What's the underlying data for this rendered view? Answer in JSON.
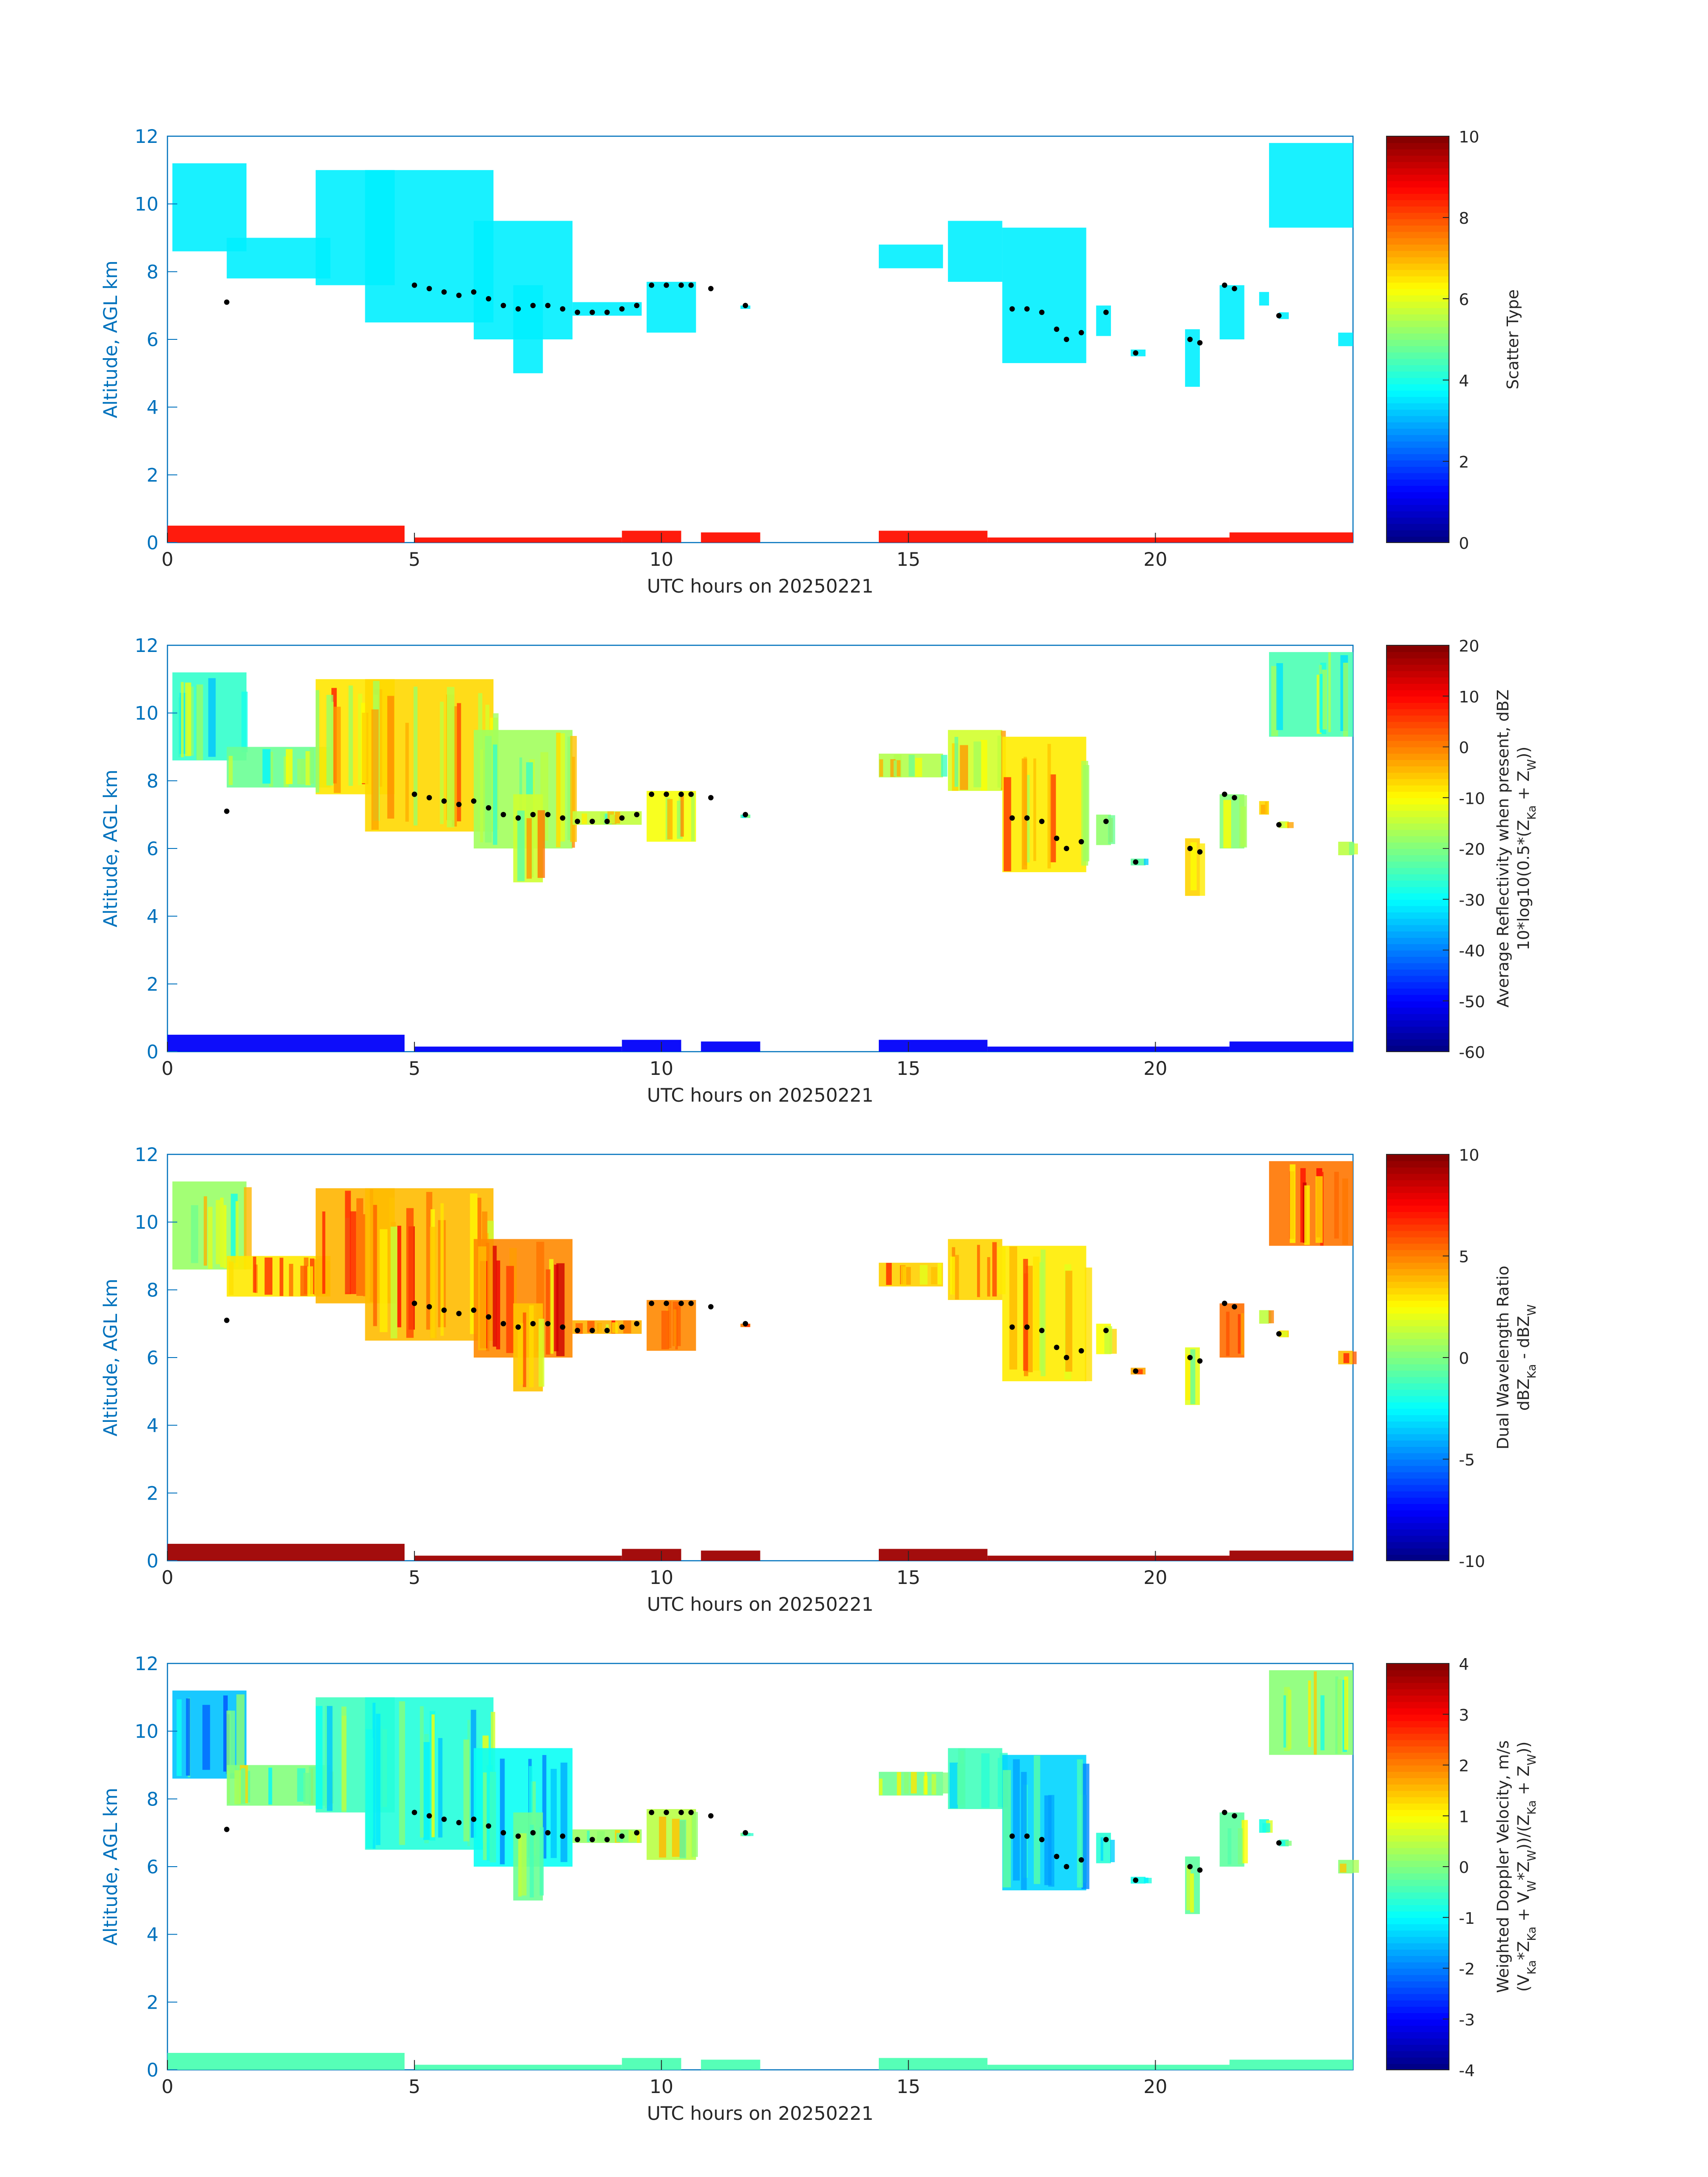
{
  "chart_data": [
    {
      "type": "heatmap",
      "title": "",
      "xlabel": "UTC hours on 20250221",
      "ylabel": "Altitude, AGL km",
      "xlim": [
        0,
        24
      ],
      "ylim": [
        0,
        12
      ],
      "xticks": [
        "0",
        "5",
        "10",
        "15",
        "20"
      ],
      "yticks": [
        "0",
        "2",
        "4",
        "6",
        "8",
        "10",
        "12"
      ],
      "colorbar": {
        "label_lines": [
          "Scatter Type"
        ],
        "range": [
          0,
          10
        ],
        "ticks": [
          "0",
          "2",
          "4",
          "6",
          "8",
          "10"
        ]
      },
      "field_value": 0.36,
      "low_layer_value": 0.86
    },
    {
      "type": "heatmap",
      "title": "",
      "xlabel": "UTC hours on 20250221",
      "ylabel": "Altitude, AGL km",
      "xlim": [
        0,
        24
      ],
      "ylim": [
        0,
        12
      ],
      "xticks": [
        "0",
        "5",
        "10",
        "15",
        "20"
      ],
      "yticks": [
        "0",
        "2",
        "4",
        "6",
        "8",
        "10",
        "12"
      ],
      "colorbar": {
        "label_lines": [
          "Average Reflectivity when present, dBZ",
          "10*log10(0.5*(Z_Ka + Z_W))"
        ],
        "range": [
          -60,
          20
        ],
        "ticks": [
          "-60",
          "-50",
          "-40",
          "-30",
          "-20",
          "-10",
          "0",
          "10",
          "20"
        ]
      },
      "field_value": 0.55,
      "low_layer_value": 0.12
    },
    {
      "type": "heatmap",
      "title": "",
      "xlabel": "UTC hours on 20250221",
      "ylabel": "Altitude, AGL km",
      "xlim": [
        0,
        24
      ],
      "ylim": [
        0,
        12
      ],
      "xticks": [
        "0",
        "5",
        "10",
        "15",
        "20"
      ],
      "yticks": [
        "0",
        "2",
        "4",
        "6",
        "8",
        "10",
        "12"
      ],
      "colorbar": {
        "label_lines": [
          "Dual Wavelength Ratio",
          "dBZ_Ka - dBZ_W"
        ],
        "range": [
          -10,
          10
        ],
        "ticks": [
          "-10",
          "-5",
          "0",
          "5",
          "10"
        ]
      },
      "field_value": 0.65,
      "low_layer_value": 0.97
    },
    {
      "type": "heatmap",
      "title": "",
      "xlabel": "UTC hours on 20250221",
      "ylabel": "Altitude, AGL km",
      "xlim": [
        0,
        24
      ],
      "ylim": [
        0,
        12
      ],
      "xticks": [
        "0",
        "5",
        "10",
        "15",
        "20"
      ],
      "yticks": [
        "0",
        "2",
        "4",
        "6",
        "8",
        "10",
        "12"
      ],
      "colorbar": {
        "label_lines": [
          "Weighted Doppler Velocity, m/s",
          "(V_Ka*Z_Ka + V_W*Z_W))/(Z_Ka + Z_W))"
        ],
        "range": [
          -4,
          4
        ],
        "ticks": [
          "-4",
          "-3",
          "-2",
          "-1",
          "0",
          "1",
          "2",
          "3",
          "4"
        ]
      },
      "field_value": 0.44,
      "low_layer_value": 0.45
    }
  ],
  "cloud_regions": [
    {
      "x0": 0.1,
      "x1": 1.6,
      "ybot": 8.6,
      "ytop": 11.2
    },
    {
      "x0": 1.2,
      "x1": 3.3,
      "ybot": 7.8,
      "ytop": 9.0
    },
    {
      "x0": 3.0,
      "x1": 4.6,
      "ybot": 7.6,
      "ytop": 11.0
    },
    {
      "x0": 4.0,
      "x1": 6.6,
      "ybot": 6.5,
      "ytop": 11.0
    },
    {
      "x0": 6.2,
      "x1": 8.2,
      "ybot": 6.0,
      "ytop": 9.5
    },
    {
      "x0": 7.0,
      "x1": 7.6,
      "ybot": 5.0,
      "ytop": 7.6
    },
    {
      "x0": 8.2,
      "x1": 9.6,
      "ybot": 6.7,
      "ytop": 7.1
    },
    {
      "x0": 9.7,
      "x1": 10.7,
      "ybot": 6.2,
      "ytop": 7.7
    },
    {
      "x0": 11.6,
      "x1": 11.8,
      "ybot": 6.9,
      "ytop": 7.0
    },
    {
      "x0": 14.4,
      "x1": 15.7,
      "ybot": 8.1,
      "ytop": 8.8
    },
    {
      "x0": 15.8,
      "x1": 16.9,
      "ybot": 7.7,
      "ytop": 9.5
    },
    {
      "x0": 16.9,
      "x1": 18.6,
      "ybot": 5.3,
      "ytop": 9.3
    },
    {
      "x0": 18.8,
      "x1": 19.1,
      "ybot": 6.1,
      "ytop": 7.0
    },
    {
      "x0": 19.5,
      "x1": 19.8,
      "ybot": 5.5,
      "ytop": 5.7
    },
    {
      "x0": 20.6,
      "x1": 20.9,
      "ybot": 4.6,
      "ytop": 6.3
    },
    {
      "x0": 21.3,
      "x1": 21.8,
      "ybot": 6.0,
      "ytop": 7.6
    },
    {
      "x0": 22.1,
      "x1": 22.3,
      "ybot": 7.0,
      "ytop": 7.4
    },
    {
      "x0": 22.5,
      "x1": 22.7,
      "ybot": 6.6,
      "ytop": 6.8
    },
    {
      "x0": 22.3,
      "x1": 24.0,
      "ybot": 9.3,
      "ytop": 11.8
    },
    {
      "x0": 23.7,
      "x1": 24.0,
      "ybot": 5.8,
      "ytop": 6.2
    }
  ],
  "low_layer_segments": [
    {
      "x0": 0.0,
      "x1": 4.8,
      "h": 0.5
    },
    {
      "x0": 5.0,
      "x1": 9.2,
      "h": 0.15
    },
    {
      "x0": 9.2,
      "x1": 10.4,
      "h": 0.35
    },
    {
      "x0": 10.8,
      "x1": 12.0,
      "h": 0.3
    },
    {
      "x0": 14.4,
      "x1": 16.6,
      "h": 0.35
    },
    {
      "x0": 16.6,
      "x1": 21.5,
      "h": 0.15
    },
    {
      "x0": 21.5,
      "x1": 24.0,
      "h": 0.3
    }
  ],
  "cloud_top_points": {
    "x": [
      1.2,
      5.0,
      5.3,
      5.6,
      5.9,
      6.2,
      6.5,
      6.8,
      7.1,
      7.4,
      7.7,
      8.0,
      8.3,
      8.6,
      8.9,
      9.2,
      9.5,
      9.8,
      10.1,
      10.4,
      10.6,
      11.0,
      11.7,
      17.1,
      17.4,
      17.7,
      18.0,
      18.2,
      18.5,
      19.0,
      19.6,
      20.7,
      20.9,
      21.4,
      21.6,
      22.5
    ],
    "y": [
      7.1,
      7.6,
      7.5,
      7.4,
      7.3,
      7.4,
      7.2,
      7.0,
      6.9,
      7.0,
      7.0,
      6.9,
      6.8,
      6.8,
      6.8,
      6.9,
      7.0,
      7.6,
      7.6,
      7.6,
      7.6,
      7.5,
      7.0,
      6.9,
      6.9,
      6.8,
      6.3,
      6.0,
      6.2,
      6.8,
      5.6,
      6.0,
      5.9,
      7.6,
      7.5,
      6.7
    ]
  }
}
